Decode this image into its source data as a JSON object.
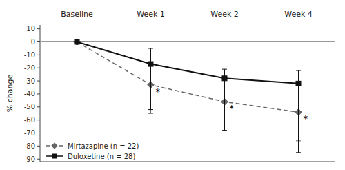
{
  "chart_data": {
    "type": "line",
    "categories": [
      "Baseline",
      "Week 1",
      "Week 2",
      "Week 4"
    ],
    "y_label": "% change",
    "ylim": [
      -92,
      13
    ],
    "yticks": [
      10,
      0,
      -10,
      -20,
      -30,
      -40,
      -50,
      -60,
      -70,
      -80,
      -90
    ],
    "grid": false,
    "legend": "lower left",
    "series": [
      {
        "name": "Mirtazapine (n = 22)",
        "color": "#666666",
        "line_style": "dashed",
        "marker": "diamond",
        "values": [
          0,
          -33,
          -46,
          -54
        ],
        "error_low": [
          0,
          22,
          22,
          22
        ],
        "error_high": [
          0,
          0,
          0,
          0
        ]
      },
      {
        "name": "Duloxetine (n = 28)",
        "color": "#111111",
        "line_style": "solid",
        "marker": "square",
        "values": [
          0,
          -17,
          -28,
          -32
        ],
        "error_low": [
          0,
          35,
          40,
          53
        ],
        "error_high": [
          0,
          12,
          7,
          10
        ]
      }
    ],
    "annotations": [
      {
        "text": "*",
        "category": "Week 1",
        "y": -38
      },
      {
        "text": "*",
        "category": "Week 2",
        "y": -51
      },
      {
        "text": "*",
        "category": "Week 4",
        "y": -59
      }
    ]
  }
}
